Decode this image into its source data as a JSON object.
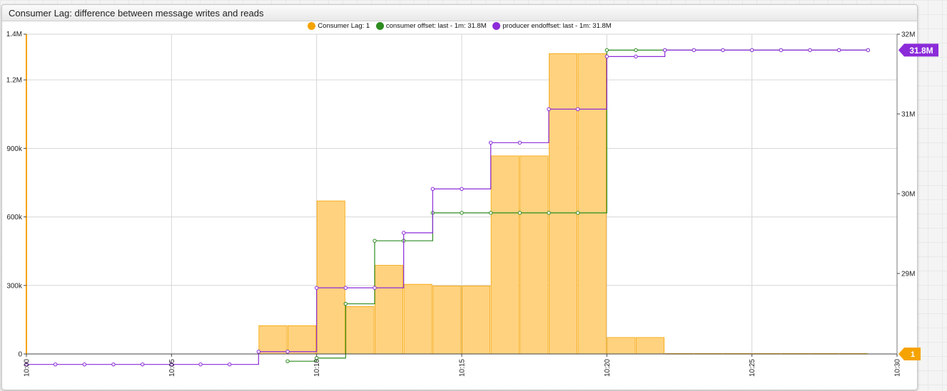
{
  "widget": {
    "title": "Consumer Lag: difference between message writes and reads"
  },
  "colors": {
    "lag": "#FFD27F",
    "lag_stroke": "#F5A300",
    "lag_dot": "#F5A300",
    "consumer": "#2E8B20",
    "producer": "#8B2BD9"
  },
  "chart_data": {
    "type": "bar",
    "x_ticks": [
      "10:00",
      "10:05",
      "10:10",
      "10:15",
      "10:20",
      "10:25",
      "10:30"
    ],
    "x_range": [
      "10:00",
      "10:30"
    ],
    "left_axis": {
      "ylim": [
        0,
        1400000
      ],
      "ticks": [
        "0",
        "300k",
        "600k",
        "900k",
        "1.2M",
        "1.4M"
      ]
    },
    "right_axis": {
      "ticks": [
        "29M",
        "30M",
        "31M",
        "32M"
      ]
    },
    "legend": [
      {
        "name": "Consumer Lag: 1",
        "color_key": "lag_dot"
      },
      {
        "name": "consumer offset: last - 1m: 31.8M",
        "color_key": "consumer"
      },
      {
        "name": "producer endoffset: last - 1m: 31.8M",
        "color_key": "producer"
      }
    ],
    "series": [
      {
        "name": "Consumer Lag",
        "kind": "bar",
        "axis": "left",
        "points": [
          [
            "10:08",
            124000
          ],
          [
            "10:09",
            124000
          ],
          [
            "10:10",
            670000
          ],
          [
            "10:11",
            208000
          ],
          [
            "10:12",
            388000
          ],
          [
            "10:13",
            305000
          ],
          [
            "10:14",
            298000
          ],
          [
            "10:15",
            298000
          ],
          [
            "10:16",
            867000
          ],
          [
            "10:17",
            867000
          ],
          [
            "10:18",
            1315000
          ],
          [
            "10:19",
            1315000
          ],
          [
            "10:20",
            72000
          ],
          [
            "10:21",
            72000
          ],
          [
            "10:22",
            2000
          ],
          [
            "10:23",
            2000
          ],
          [
            "10:24",
            2000
          ],
          [
            "10:25",
            2000
          ],
          [
            "10:26",
            2000
          ],
          [
            "10:27",
            2000
          ],
          [
            "10:28",
            2000
          ]
        ]
      },
      {
        "name": "consumer offset",
        "kind": "step",
        "axis": "right",
        "points": [
          [
            "10:09",
            27900000
          ],
          [
            "10:10",
            27940000
          ],
          [
            "10:11",
            28620000
          ],
          [
            "10:12",
            29410000
          ],
          [
            "10:13",
            29410000
          ],
          [
            "10:14",
            29760000
          ],
          [
            "10:15",
            29760000
          ],
          [
            "10:16",
            29760000
          ],
          [
            "10:17",
            29760000
          ],
          [
            "10:18",
            29760000
          ],
          [
            "10:19",
            29760000
          ],
          [
            "10:20",
            31800000
          ],
          [
            "10:21",
            31800000
          ],
          [
            "10:22",
            31800000
          ],
          [
            "10:23",
            31800000
          ],
          [
            "10:24",
            31800000
          ],
          [
            "10:25",
            31800000
          ],
          [
            "10:26",
            31800000
          ],
          [
            "10:27",
            31800000
          ],
          [
            "10:28",
            31800000
          ],
          [
            "10:29",
            31800000
          ]
        ]
      },
      {
        "name": "producer endoffset",
        "kind": "step",
        "axis": "right",
        "points": [
          [
            "10:00",
            27860000
          ],
          [
            "10:01",
            27860000
          ],
          [
            "10:02",
            27860000
          ],
          [
            "10:03",
            27860000
          ],
          [
            "10:04",
            27860000
          ],
          [
            "10:05",
            27860000
          ],
          [
            "10:06",
            27860000
          ],
          [
            "10:07",
            27860000
          ],
          [
            "10:08",
            28020000
          ],
          [
            "10:09",
            28020000
          ],
          [
            "10:10",
            28820000
          ],
          [
            "10:11",
            28820000
          ],
          [
            "10:12",
            28820000
          ],
          [
            "10:13",
            29510000
          ],
          [
            "10:14",
            30060000
          ],
          [
            "10:15",
            30060000
          ],
          [
            "10:16",
            30640000
          ],
          [
            "10:17",
            30640000
          ],
          [
            "10:18",
            31060000
          ],
          [
            "10:19",
            31060000
          ],
          [
            "10:20",
            31720000
          ],
          [
            "10:21",
            31720000
          ],
          [
            "10:22",
            31800000
          ],
          [
            "10:23",
            31800000
          ],
          [
            "10:24",
            31800000
          ],
          [
            "10:25",
            31800000
          ],
          [
            "10:26",
            31800000
          ],
          [
            "10:27",
            31800000
          ],
          [
            "10:28",
            31800000
          ],
          [
            "10:29",
            31800000
          ]
        ]
      }
    ],
    "badges": {
      "right": "31.8M",
      "bottom_right": "1"
    }
  }
}
